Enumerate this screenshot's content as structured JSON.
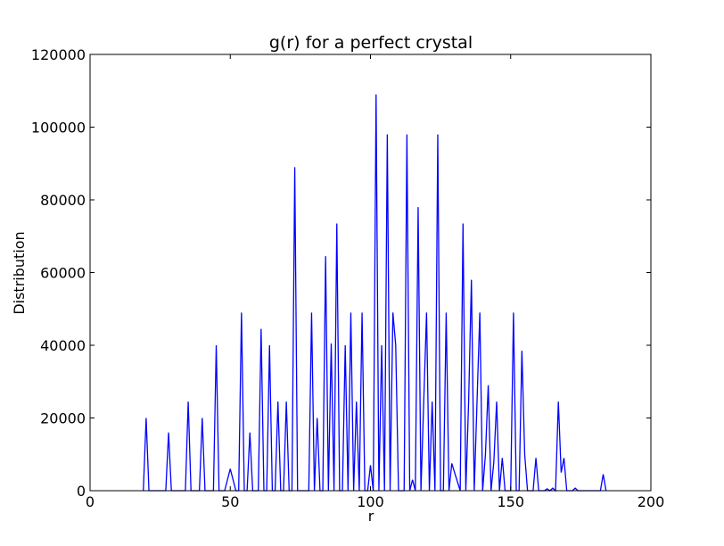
{
  "chart_data": {
    "type": "line",
    "title": "g(r) for a perfect crystal",
    "xlabel": "r",
    "ylabel": "Distribution",
    "xlim": [
      0,
      200
    ],
    "ylim": [
      0,
      120000
    ],
    "x_ticks": [
      "0",
      "50",
      "100",
      "150",
      "200"
    ],
    "y_ticks": [
      "0",
      "20000",
      "40000",
      "60000",
      "80000",
      "100000",
      "120000"
    ],
    "grid": false,
    "legend": "none",
    "line_color": "#0000ff",
    "series": [
      {
        "x": [
          19,
          20,
          21,
          27,
          28,
          29,
          34,
          35,
          36,
          39,
          40,
          41,
          44,
          45,
          46,
          48,
          50,
          52,
          53,
          54,
          55,
          56,
          57,
          58,
          60,
          61,
          62,
          63,
          64,
          65,
          66,
          67,
          68,
          69,
          70,
          71,
          72,
          73,
          74,
          78,
          79,
          80,
          81,
          82,
          83,
          84,
          85,
          86,
          87,
          88,
          89,
          90,
          91,
          92,
          93,
          94,
          95,
          96,
          97,
          98,
          99,
          100,
          101,
          102,
          103,
          104,
          105,
          106,
          107,
          108,
          109,
          110,
          112,
          113,
          114,
          115,
          116,
          117,
          118,
          119,
          120,
          121,
          122,
          123,
          124,
          125,
          126,
          127,
          128,
          129,
          130,
          132,
          133,
          134,
          135,
          136,
          137,
          138,
          139,
          140,
          141,
          142,
          143,
          144,
          145,
          146,
          147,
          148,
          150,
          151,
          152,
          153,
          154,
          155,
          156,
          158,
          159,
          160,
          162,
          163,
          164,
          165,
          166,
          167,
          168,
          169,
          170,
          172,
          173,
          174,
          182,
          183,
          184
        ],
        "values": [
          0,
          20000,
          0,
          0,
          16000,
          0,
          0,
          24500,
          0,
          0,
          20000,
          0,
          0,
          40000,
          0,
          0,
          6000,
          0,
          0,
          49000,
          0,
          0,
          16000,
          0,
          0,
          44500,
          0,
          0,
          40000,
          0,
          0,
          24500,
          0,
          0,
          24500,
          0,
          0,
          89000,
          0,
          0,
          49000,
          0,
          20000,
          0,
          0,
          64500,
          0,
          40500,
          0,
          73500,
          0,
          0,
          40000,
          0,
          49000,
          0,
          24500,
          0,
          49000,
          0,
          0,
          7000,
          0,
          109000,
          0,
          40000,
          0,
          98000,
          0,
          49000,
          40000,
          0,
          0,
          98000,
          0,
          3000,
          0,
          78000,
          0,
          24500,
          49000,
          0,
          24500,
          0,
          98000,
          0,
          0,
          49000,
          0,
          7500,
          5000,
          0,
          73500,
          0,
          24500,
          58000,
          0,
          24500,
          49000,
          0,
          10000,
          29000,
          0,
          8000,
          24500,
          0,
          9000,
          0,
          0,
          49000,
          0,
          0,
          38500,
          10000,
          0,
          0,
          9000,
          0,
          0,
          500,
          0,
          700,
          0,
          24500,
          5000,
          9000,
          0,
          0,
          700,
          0,
          0,
          4500,
          0
        ]
      }
    ]
  }
}
